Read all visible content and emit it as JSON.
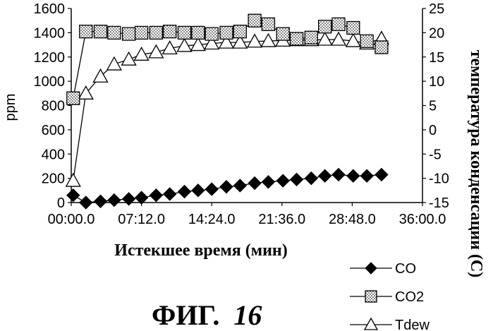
{
  "chart_data": {
    "type": "line",
    "xlabel": "Истекшее время (мин)",
    "ylabel": "ppm",
    "y2label": "температура конденсации (C)",
    "caption_prefix": "ФИГ.",
    "caption_number": "16",
    "x_ticks": [
      "00:00.0",
      "07:12.0",
      "14:24.0",
      "21:36.0",
      "28:48.0",
      "36:00.0"
    ],
    "x_tick_minutes": [
      0,
      7.2,
      14.4,
      21.6,
      28.8,
      36
    ],
    "xlim_minutes": [
      0,
      36
    ],
    "y_ticks": [
      "0",
      "200",
      "400",
      "600",
      "800",
      "1000",
      "1200",
      "1400",
      "1600"
    ],
    "ylim": [
      0,
      1600
    ],
    "y2_ticks": [
      "-15",
      "-10",
      "-5",
      "0",
      "5",
      "10",
      "15",
      "20",
      "25"
    ],
    "y2lim": [
      -15,
      25
    ],
    "legend_position": "bottom-right",
    "grid": false,
    "series": [
      {
        "name": "CO",
        "axis": "left",
        "marker": "diamond",
        "x_minutes": [
          0.2,
          1.5,
          3.0,
          4.4,
          5.9,
          7.2,
          8.7,
          10.1,
          11.6,
          13.0,
          14.4,
          15.9,
          17.3,
          18.8,
          20.2,
          21.7,
          23.1,
          24.6,
          26.0,
          27.4,
          28.9,
          30.3,
          31.8
        ],
        "values": [
          60,
          0,
          10,
          20,
          30,
          40,
          60,
          70,
          90,
          100,
          110,
          130,
          140,
          160,
          170,
          180,
          190,
          200,
          220,
          230,
          220,
          220,
          230
        ]
      },
      {
        "name": "CO2",
        "axis": "left",
        "marker": "square",
        "x_minutes": [
          0.2,
          1.5,
          3.0,
          4.4,
          5.9,
          7.2,
          8.7,
          10.1,
          11.6,
          13.0,
          14.4,
          15.9,
          17.3,
          18.8,
          20.2,
          21.7,
          23.1,
          24.6,
          26.0,
          27.4,
          28.9,
          30.3,
          31.8
        ],
        "values": [
          860,
          1410,
          1410,
          1400,
          1390,
          1400,
          1400,
          1410,
          1400,
          1400,
          1390,
          1400,
          1410,
          1500,
          1470,
          1390,
          1350,
          1360,
          1450,
          1470,
          1440,
          1330,
          1280
        ]
      },
      {
        "name": "Tdew",
        "axis": "right",
        "marker": "triangle",
        "x_minutes": [
          0.2,
          1.5,
          3.0,
          4.4,
          5.9,
          7.2,
          8.7,
          10.1,
          11.6,
          13.0,
          14.4,
          15.9,
          17.3,
          18.8,
          20.2,
          21.7,
          23.1,
          24.6,
          26.0,
          27.4,
          28.9,
          30.3,
          31.8
        ],
        "values": [
          -10.5,
          7.5,
          11.0,
          13.5,
          14.5,
          15.5,
          16.0,
          16.8,
          17.3,
          17.5,
          17.8,
          18.0,
          18.0,
          18.2,
          18.3,
          18.4,
          18.5,
          18.5,
          18.6,
          18.6,
          18.3,
          17.8,
          18.8
        ]
      }
    ]
  }
}
